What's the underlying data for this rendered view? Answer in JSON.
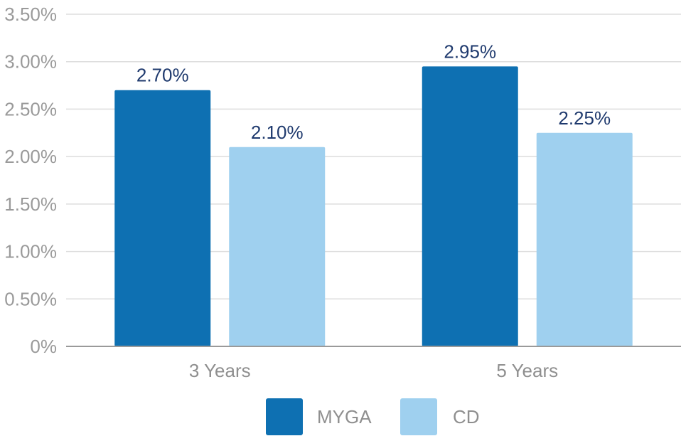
{
  "chart_data": {
    "type": "bar",
    "categories": [
      "3 Years",
      "5 Years"
    ],
    "series": [
      {
        "name": "MYGA",
        "values": [
          2.7,
          2.95
        ],
        "color": "#0e70b2"
      },
      {
        "name": "CD",
        "values": [
          2.1,
          2.25
        ],
        "color": "#9fd0ef"
      }
    ],
    "data_labels": [
      [
        "2.70%",
        "2.95%"
      ],
      [
        "2.10%",
        "2.25%"
      ]
    ],
    "yticks": [
      0,
      0.5,
      1.0,
      1.5,
      2.0,
      2.5,
      3.0,
      3.5
    ],
    "ytick_labels": [
      "0%",
      "0.50%",
      "1.00%",
      "1.50%",
      "2.00%",
      "2.50%",
      "3.00%",
      "3.50%"
    ],
    "ylim": [
      0,
      3.5
    ],
    "grid": true,
    "legend_position": "bottom-center",
    "title": "",
    "xlabel": "",
    "ylabel": ""
  }
}
